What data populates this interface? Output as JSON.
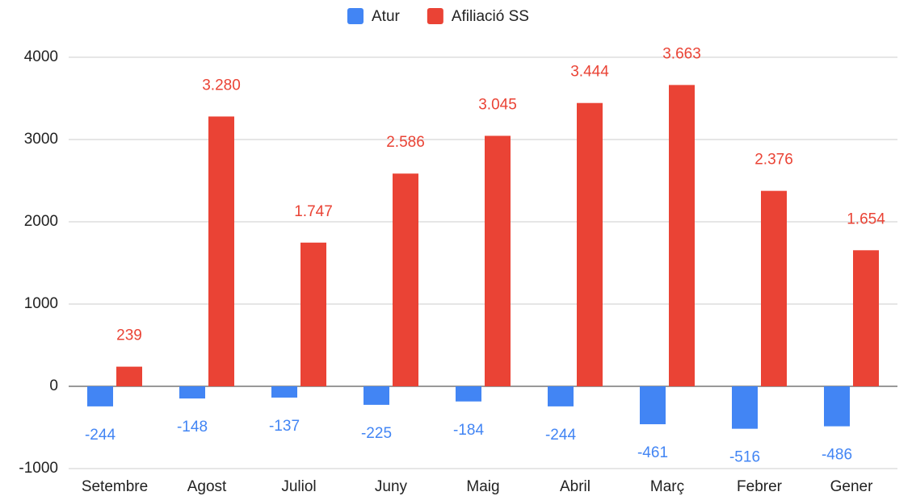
{
  "chart_data": {
    "type": "bar",
    "categories": [
      "Setembre",
      "Agost",
      "Juliol",
      "Juny",
      "Maig",
      "Abril",
      "Març",
      "Febrer",
      "Gener"
    ],
    "series": [
      {
        "name": "Atur",
        "color": "#4285f4",
        "values": [
          -244,
          -148,
          -137,
          -225,
          -184,
          -244,
          -461,
          -516,
          -486
        ]
      },
      {
        "name": "Afiliació SS",
        "color": "#ea4335",
        "values": [
          239,
          3280,
          1747,
          2586,
          3045,
          3444,
          3663,
          2376,
          1654
        ],
        "value_labels": [
          "239",
          "3.280",
          "1.747",
          "2.586",
          "3.045",
          "3.444",
          "3.663",
          "2.376",
          "1.654"
        ]
      }
    ],
    "ylim": [
      -1000,
      4000
    ],
    "yticks": [
      -1000,
      0,
      1000,
      2000,
      3000,
      4000
    ],
    "grid": true,
    "legend": "top"
  }
}
